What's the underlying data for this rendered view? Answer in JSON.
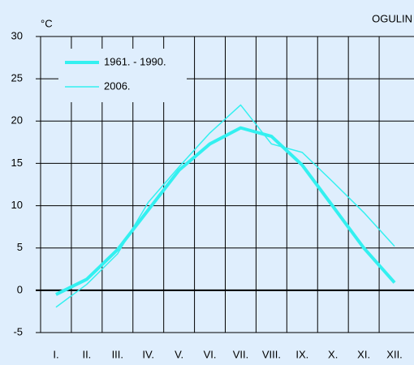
{
  "chart_data": {
    "type": "line",
    "title": "OGULIN",
    "y_label": "°C",
    "categories": [
      "I.",
      "II.",
      "III.",
      "IV.",
      "V.",
      "VI.",
      "VII.",
      "VIII.",
      "IX.",
      "X.",
      "XI.",
      "XII."
    ],
    "series": [
      {
        "name": "1961. - 1990.",
        "color": "#33f0f0",
        "values": [
          -0.5,
          1.3,
          4.8,
          9.5,
          14.2,
          17.3,
          19.2,
          18.2,
          14.8,
          9.9,
          5.0,
          0.9
        ]
      },
      {
        "name": "2006.",
        "color": "#33f0f0",
        "values": [
          -2.0,
          0.7,
          4.3,
          10.4,
          14.6,
          18.6,
          21.9,
          17.3,
          16.3,
          12.8,
          9.2,
          5.2
        ]
      }
    ],
    "ylim": [
      -5,
      30
    ],
    "yticks": [
      -5,
      0,
      5,
      10,
      15,
      20,
      25,
      30
    ],
    "grid": true,
    "legend": "upper left"
  }
}
